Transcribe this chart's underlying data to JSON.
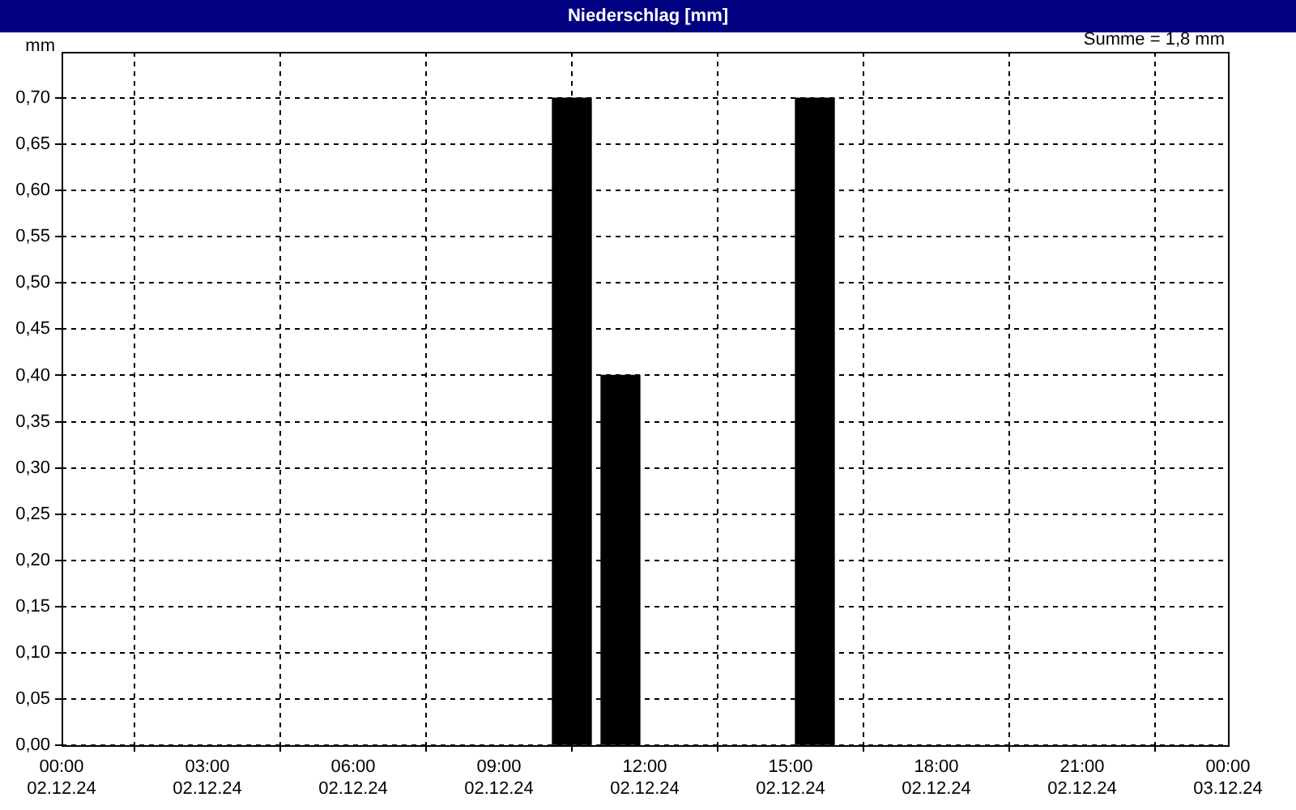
{
  "chart_data": {
    "type": "bar",
    "title": "Niederschlag [mm]",
    "ylabel": "mm",
    "annotations": [
      "Summe = 1,8 mm"
    ],
    "x": [
      "--12-02T10:30",
      "--12-02T11:30",
      "--12-02T15:30"
    ],
    "series": [
      {
        "color": "#000000",
        "values": [
          0.7,
          0.4,
          0.7
        ]
      }
    ],
    "xlim": [
      "--12-02T00:00",
      "--12-03T00:00"
    ],
    "xticks": [
      {
        "value": "--12-02T00:00",
        "label": "00:00\n02.12.24"
      },
      {
        "value": "--12-02T03:00",
        "label": "03:00\n02.12.24"
      },
      {
        "value": "--12-02T06:00",
        "label": "06:00\n02.12.24"
      },
      {
        "value": "--12-02T09:00",
        "label": "09:00\n02.12.24"
      },
      {
        "value": "--12-02T12:00",
        "label": "12:00\n02.12.24"
      },
      {
        "value": "--12-02T15:00",
        "label": "15:00\n02.12.24"
      },
      {
        "value": "--12-02T18:00",
        "label": "18:00\n02.12.24"
      },
      {
        "value": "--12-02T21:00",
        "label": "21:00\n02.12.24"
      },
      {
        "value": "--12-03T00:00",
        "label": "00:00\n03.12.24"
      }
    ],
    "ylim": [
      0,
      0.75
    ],
    "yticks": [
      {
        "value": 0,
        "label": "0,00"
      },
      {
        "value": 0.05,
        "label": "0,05"
      },
      {
        "value": 0.1,
        "label": "0,10"
      },
      {
        "value": 0.15,
        "label": "0,15"
      },
      {
        "value": 0.2,
        "label": "0,20"
      },
      {
        "value": 0.25,
        "label": "0,25"
      },
      {
        "value": 0.3,
        "label": "0,30"
      },
      {
        "value": 0.35,
        "label": "0,35"
      },
      {
        "value": 0.4,
        "label": "0,40"
      },
      {
        "value": 0.45,
        "label": "0,45"
      },
      {
        "value": 0.5,
        "label": "0,50"
      },
      {
        "value": 0.55,
        "label": "0,55"
      },
      {
        "value": 0.6,
        "label": "0,60"
      },
      {
        "value": 0.65,
        "label": "0,65"
      },
      {
        "value": 0.7,
        "label": "0,70"
      }
    ],
    "grid": true,
    "legend": false
  }
}
